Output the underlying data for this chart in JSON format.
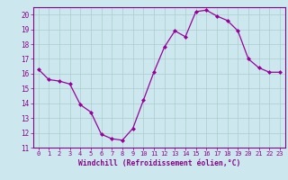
{
  "x": [
    0,
    1,
    2,
    3,
    4,
    5,
    6,
    7,
    8,
    9,
    10,
    11,
    12,
    13,
    14,
    15,
    16,
    17,
    18,
    19,
    20,
    21,
    22,
    23
  ],
  "y": [
    16.3,
    15.6,
    15.5,
    15.3,
    13.9,
    13.4,
    11.9,
    11.6,
    11.5,
    12.3,
    14.2,
    16.1,
    17.8,
    18.9,
    18.5,
    20.2,
    20.3,
    19.9,
    19.6,
    18.9,
    17.0,
    16.4,
    16.1,
    16.1
  ],
  "line_color": "#990099",
  "marker_color": "#990099",
  "bg_color": "#cce8ee",
  "grid_color": "#aacccc",
  "xlabel": "Windchill (Refroidissement éolien,°C)",
  "xlabel_color": "#880088",
  "tick_color": "#880088",
  "spine_color": "#880088",
  "ylim": [
    11,
    20.5
  ],
  "xlim": [
    -0.5,
    23.5
  ],
  "yticks": [
    11,
    12,
    13,
    14,
    15,
    16,
    17,
    18,
    19,
    20
  ],
  "xticks": [
    0,
    1,
    2,
    3,
    4,
    5,
    6,
    7,
    8,
    9,
    10,
    11,
    12,
    13,
    14,
    15,
    16,
    17,
    18,
    19,
    20,
    21,
    22,
    23
  ]
}
